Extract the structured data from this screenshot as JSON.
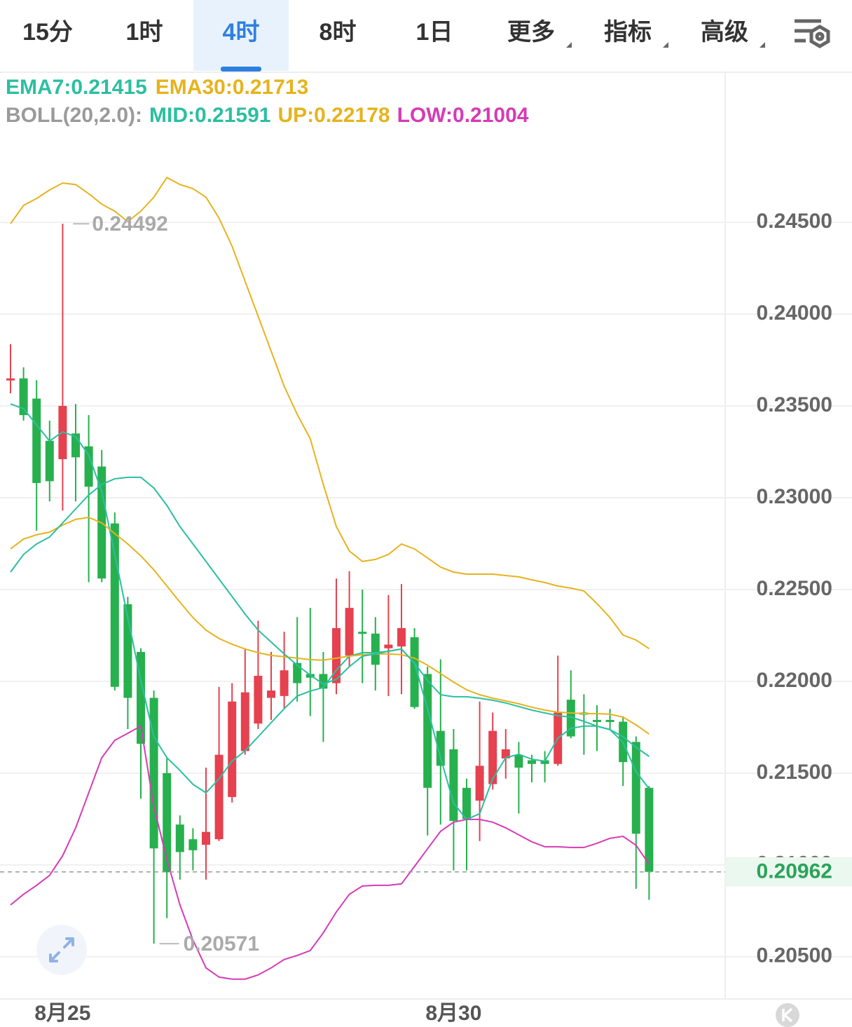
{
  "chart_data": {
    "type": "candlestick",
    "toolbar": {
      "tabs": [
        "15分",
        "1时",
        "4时",
        "8时",
        "1日"
      ],
      "menus": [
        "更多",
        "指标",
        "高级"
      ],
      "active_tab": "4时"
    },
    "categories": [
      null,
      null,
      null,
      null,
      "8月25",
      null,
      null,
      null,
      null,
      null,
      null,
      null,
      null,
      null,
      null,
      null,
      null,
      null,
      null,
      null,
      null,
      null,
      null,
      null,
      null,
      null,
      null,
      null,
      null,
      null,
      null,
      null,
      null,
      null,
      "8月30",
      null,
      null,
      null,
      null,
      null,
      null,
      null,
      null,
      null,
      null,
      null,
      null,
      null,
      null,
      null
    ],
    "open": [
      0.2364,
      0.2365,
      0.2354,
      0.2331,
      0.2321,
      0.2335,
      0.2328,
      0.2317,
      0.2286,
      0.2242,
      0.2216,
      0.2191,
      0.215,
      0.2122,
      0.2114,
      0.2111,
      0.2114,
      0.2137,
      0.2162,
      0.2177,
      0.2191,
      0.2192,
      0.221,
      0.2204,
      0.2204,
      0.2199,
      0.2214,
      0.2227,
      0.2226,
      0.2218,
      0.2219,
      0.2224,
      0.2204,
      0.2173,
      0.2163,
      0.2142,
      0.2135,
      0.2144,
      0.2158,
      0.216,
      0.2157,
      0.2157,
      0.2155,
      0.219,
      0.2183,
      0.2179,
      0.2179,
      0.2178,
      0.2167,
      0.2142
    ],
    "high": [
      0.23836,
      0.2371,
      0.2364,
      0.2342,
      0.24492,
      0.2351,
      0.2345,
      0.2326,
      0.2292,
      0.2246,
      0.2218,
      0.2195,
      0.2158,
      0.2127,
      0.212,
      0.2153,
      0.2197,
      0.2199,
      0.2218,
      0.2233,
      0.2216,
      0.2227,
      0.2235,
      0.224,
      0.2216,
      0.2256,
      0.226,
      0.225,
      0.2235,
      0.2247,
      0.2253,
      0.2229,
      0.2208,
      0.2212,
      0.2174,
      0.2147,
      0.2189,
      0.2183,
      0.2174,
      0.2167,
      0.216,
      0.2162,
      0.2214,
      0.2206,
      0.2193,
      0.2187,
      0.2185,
      0.2181,
      0.217,
      0.2143
    ],
    "low": [
      0.23569,
      0.2342,
      0.2282,
      0.2298,
      0.2293,
      0.2298,
      0.2254,
      0.2254,
      0.2195,
      0.2174,
      0.2136,
      0.20571,
      0.2071,
      0.2092,
      0.2097,
      0.2092,
      0.2113,
      0.2134,
      0.216,
      0.2174,
      0.2179,
      0.2185,
      0.2189,
      0.2181,
      0.2167,
      0.2193,
      0.2208,
      0.2199,
      0.2195,
      0.2192,
      0.2193,
      0.2185,
      0.2116,
      0.2122,
      0.2097,
      0.2097,
      0.2113,
      0.2141,
      0.2147,
      0.2128,
      0.2145,
      0.2145,
      0.2154,
      0.2169,
      0.216,
      0.2162,
      0.2174,
      0.2143,
      0.2087,
      0.2081
    ],
    "close": [
      0.2365,
      0.2345,
      0.2308,
      0.2309,
      0.235,
      0.2322,
      0.2306,
      0.2256,
      0.2197,
      0.2191,
      0.2166,
      0.2109,
      0.2096,
      0.2107,
      0.2108,
      0.2118,
      0.216,
      0.2189,
      0.2194,
      0.2203,
      0.2195,
      0.2206,
      0.2199,
      0.2202,
      0.2196,
      0.2229,
      0.224,
      0.2226,
      0.2209,
      0.222,
      0.2229,
      0.2186,
      0.2142,
      0.2154,
      0.2124,
      0.2125,
      0.2154,
      0.2173,
      0.2163,
      0.2153,
      0.2155,
      0.2155,
      0.2183,
      0.217,
      0.2182,
      0.2178,
      0.2178,
      0.2156,
      0.2117,
      0.20962
    ],
    "up_color": "#e5414f",
    "down_color": "#27b04e",
    "ema_lines": [
      {
        "name": "EMA7:",
        "color": "#2bbfa0",
        "legend_value": 0.21415,
        "values": [
          0.23511,
          0.23485,
          0.23397,
          0.23309,
          0.23359,
          0.23332,
          0.23233,
          0.23034,
          0.22691,
          0.22347,
          0.22004,
          0.21698,
          0.21584,
          0.21515,
          0.21439,
          0.21393,
          0.21469,
          0.21565,
          0.21622,
          0.21698,
          0.21775,
          0.21851,
          0.2192,
          0.21947,
          0.21966,
          0.22061,
          0.22137,
          0.22156,
          0.22156,
          0.22164,
          0.22176,
          0.22099,
          0.21851,
          0.21584,
          0.21336,
          0.21248,
          0.21279,
          0.21469,
          0.21584,
          0.21603,
          0.21576,
          0.21565,
          0.21691,
          0.21744,
          0.21756,
          0.21756,
          0.21737,
          0.21668,
          0.21508,
          0.21415
        ]
      },
      {
        "name": "EMA30:",
        "color": "#e6b31e",
        "legend_value": 0.21713,
        "values": [
          0.22721,
          0.22775,
          0.22798,
          0.22813,
          0.22851,
          0.22882,
          0.22893,
          0.22863,
          0.22805,
          0.22748,
          0.22683,
          0.22607,
          0.22519,
          0.22431,
          0.22347,
          0.22279,
          0.22233,
          0.22202,
          0.22176,
          0.22156,
          0.22141,
          0.22134,
          0.22126,
          0.22118,
          0.22115,
          0.22126,
          0.22137,
          0.22145,
          0.22149,
          0.22149,
          0.22145,
          0.22126,
          0.22088,
          0.22042,
          0.21996,
          0.21954,
          0.21927,
          0.21908,
          0.21893,
          0.21878,
          0.21859,
          0.21843,
          0.21832,
          0.21828,
          0.21824,
          0.21824,
          0.21821,
          0.21805,
          0.21763,
          0.21713
        ]
      }
    ],
    "boll_label": "BOLL(20,2.0):",
    "boll_label_color": "#9a9a9a",
    "boll_lines": [
      {
        "name": "MID:",
        "color": "#2bbfa0",
        "legend_value": 0.21591,
        "values": [
          0.22595,
          0.22691,
          0.22748,
          0.22786,
          0.22863,
          0.22939,
          0.23015,
          0.23072,
          0.23103,
          0.23111,
          0.23111,
          0.23053,
          0.22958,
          0.22843,
          0.22748,
          0.22653,
          0.22557,
          0.22462,
          0.22366,
          0.22279,
          0.22214,
          0.22149,
          0.22088,
          0.22034,
          0.21985,
          0.22011,
          0.2208,
          0.22137,
          0.22149,
          0.22164,
          0.22176,
          0.22099,
          0.22004,
          0.21927,
          0.21916,
          0.21916,
          0.21908,
          0.21897,
          0.21882,
          0.21863,
          0.21843,
          0.21828,
          0.21813,
          0.21805,
          0.21782,
          0.21756,
          0.21737,
          0.21698,
          0.21641,
          0.21591
        ]
      },
      {
        "name": "UP:",
        "color": "#e6b31e",
        "legend_value": 0.22178,
        "values": [
          0.24492,
          0.24592,
          0.2463,
          0.24676,
          0.24714,
          0.24706,
          0.24656,
          0.24599,
          0.24561,
          0.24504,
          0.24561,
          0.24637,
          0.24744,
          0.24706,
          0.24683,
          0.24637,
          0.24523,
          0.2437,
          0.24179,
          0.23989,
          0.23798,
          0.23607,
          0.23454,
          0.23321,
          0.23072,
          0.22843,
          0.2271,
          0.22653,
          0.22664,
          0.22691,
          0.22748,
          0.22721,
          0.22672,
          0.22622,
          0.22595,
          0.22584,
          0.22584,
          0.22584,
          0.22576,
          0.22569,
          0.22553,
          0.22538,
          0.22519,
          0.22508,
          0.22492,
          0.22424,
          0.22347,
          0.22252,
          0.22225,
          0.22178
        ]
      },
      {
        "name": "LOW:",
        "color": "#d63bb5",
        "legend_value": 0.21004,
        "values": [
          0.20782,
          0.2084,
          0.20889,
          0.20943,
          0.2105,
          0.21202,
          0.21393,
          0.21584,
          0.21679,
          0.21717,
          0.21756,
          0.21317,
          0.2103,
          0.20782,
          0.20591,
          0.20439,
          0.20389,
          0.20378,
          0.20378,
          0.20401,
          0.20439,
          0.20485,
          0.20507,
          0.20534,
          0.2063,
          0.20744,
          0.2084,
          0.20885,
          0.20889,
          0.20889,
          0.20897,
          0.20992,
          0.21088,
          0.21183,
          0.21233,
          0.21248,
          0.21248,
          0.21233,
          0.21202,
          0.21164,
          0.21126,
          0.21099,
          0.21099,
          0.21095,
          0.21095,
          0.21118,
          0.21145,
          0.21156,
          0.21107,
          0.21004
        ]
      }
    ],
    "high_marker": 0.24492,
    "low_marker": 0.20571,
    "last_price": 0.20962,
    "last_price_color": "#2aa35a",
    "ylim": [
      0.2027,
      0.2531
    ],
    "yticks": [
      {
        "value": 0.245,
        "label": "0.24500"
      },
      {
        "value": 0.24,
        "label": "0.24000"
      },
      {
        "value": 0.235,
        "label": "0.23500"
      },
      {
        "value": 0.23,
        "label": "0.23000"
      },
      {
        "value": 0.225,
        "label": "0.22500"
      },
      {
        "value": 0.22,
        "label": "0.22000"
      },
      {
        "value": 0.215,
        "label": "0.21500"
      },
      {
        "value": 0.21,
        "label": "0.21000"
      },
      {
        "value": 0.205,
        "label": "0.20500"
      }
    ],
    "grid": true
  }
}
